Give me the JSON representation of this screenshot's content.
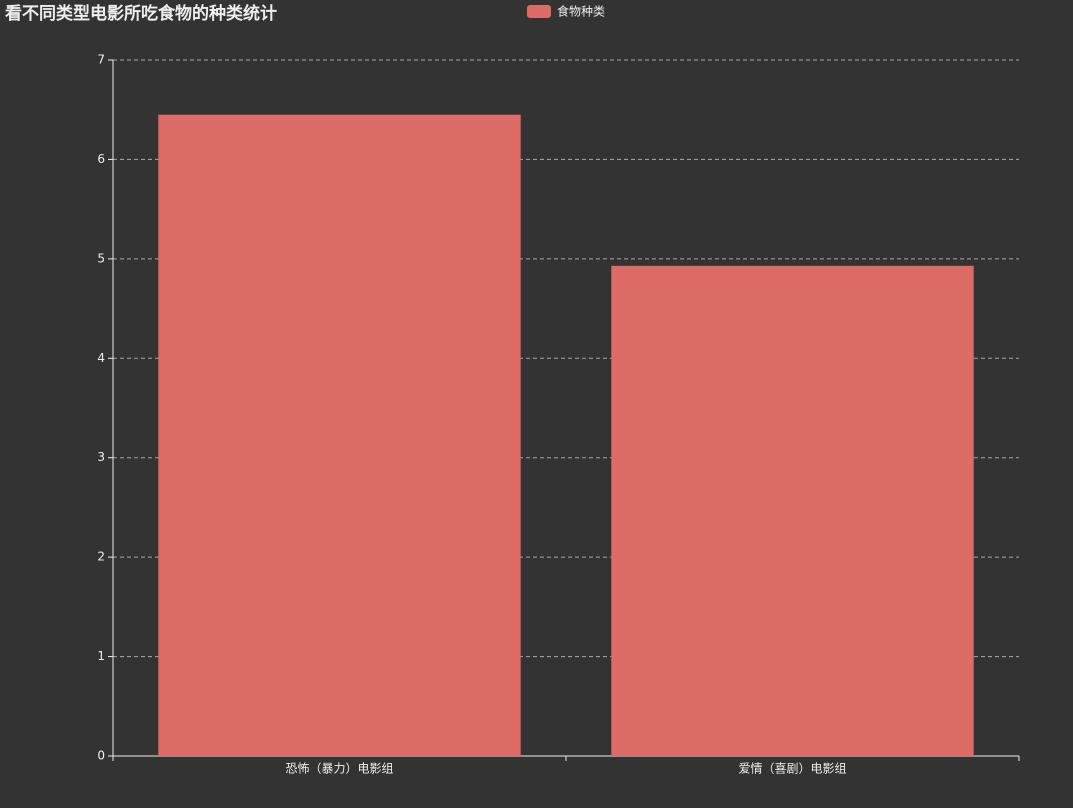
{
  "chart_data": {
    "type": "bar",
    "title": "看不同类型电影所吃食物的种类统计",
    "categories": [
      "恐怖（暴力）电影组",
      "爱情（喜剧）电影组"
    ],
    "series": [
      {
        "name": "食物种类",
        "color": "#dd6b66",
        "values": [
          6.45,
          4.93
        ]
      }
    ],
    "ylim": [
      0,
      7
    ],
    "yticks": [
      0,
      1,
      2,
      3,
      4,
      5,
      6,
      7
    ],
    "grid": true
  }
}
